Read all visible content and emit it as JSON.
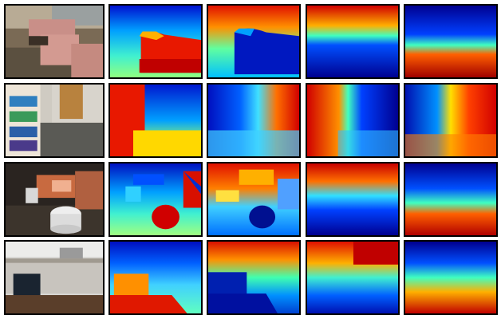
{
  "figure": {
    "rows": [
      {
        "scene": "living-room-sofas",
        "columns": [
          "rgb-photo",
          "map-1",
          "map-2",
          "map-3",
          "map-4"
        ]
      },
      {
        "scene": "office-bookshelf",
        "columns": [
          "rgb-photo",
          "map-1",
          "map-2",
          "map-3",
          "map-4"
        ]
      },
      {
        "scene": "lounge-armchair-table",
        "columns": [
          "rgb-photo",
          "map-1",
          "map-2",
          "map-3",
          "map-4"
        ]
      },
      {
        "scene": "office-desk-chair",
        "columns": [
          "rgb-photo",
          "map-1",
          "map-2",
          "map-3",
          "map-4"
        ]
      }
    ],
    "colormap": "jet",
    "colors": {
      "jet_blue": "#00008f",
      "jet_cyan": "#00ffff",
      "jet_yellow": "#ffff00",
      "jet_red": "#800000",
      "border": "#000000"
    }
  }
}
